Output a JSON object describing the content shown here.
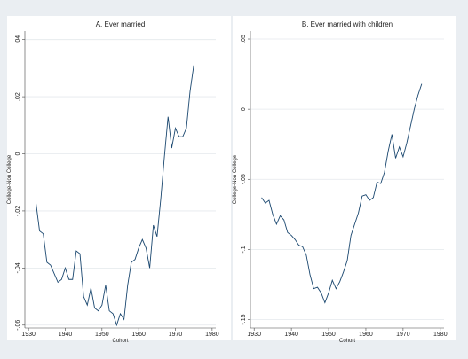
{
  "chart_data": [
    {
      "type": "line",
      "title": "A. Ever married",
      "x_label": "Cohort",
      "y_label": "College-Non College",
      "x": [
        1932,
        1933,
        1934,
        1935,
        1936,
        1937,
        1938,
        1939,
        1940,
        1941,
        1942,
        1943,
        1944,
        1945,
        1946,
        1947,
        1948,
        1949,
        1950,
        1951,
        1952,
        1953,
        1954,
        1955,
        1956,
        1957,
        1958,
        1959,
        1960,
        1961,
        1962,
        1963,
        1964,
        1965,
        1966,
        1967,
        1968,
        1969,
        1970,
        1971,
        1972,
        1973,
        1974,
        1975
      ],
      "series": [
        {
          "color": "#1a476f",
          "values": [
            -0.017,
            -0.027,
            -0.028,
            -0.038,
            -0.039,
            -0.042,
            -0.045,
            -0.044,
            -0.04,
            -0.044,
            -0.044,
            -0.034,
            -0.035,
            -0.05,
            -0.053,
            -0.047,
            -0.054,
            -0.055,
            -0.053,
            -0.046,
            -0.055,
            -0.056,
            -0.06,
            -0.056,
            -0.058,
            -0.046,
            -0.038,
            -0.037,
            -0.033,
            -0.03,
            -0.033,
            -0.04,
            -0.025,
            -0.029,
            -0.016,
            -0.001,
            0.013,
            0.002,
            0.009,
            0.006,
            0.006,
            0.009,
            0.022,
            0.031
          ]
        }
      ],
      "xlim": [
        1929,
        1981
      ],
      "xticks": [
        1930,
        1940,
        1950,
        1960,
        1970,
        1980
      ],
      "ylim": [
        -0.061,
        0.043
      ],
      "yticks": [
        {
          "value": -0.06,
          "label": "-.06"
        },
        {
          "value": -0.04,
          "label": "-.04"
        },
        {
          "value": -0.02,
          "label": "-.02"
        },
        0,
        {
          "value": 0.02,
          "label": ".02"
        },
        {
          "value": 0.04,
          "label": ".04"
        }
      ],
      "grid": true
    },
    {
      "type": "line",
      "title": "B. Ever married with children",
      "x_label": "Cohort",
      "y_label": "College-Non College",
      "x": [
        1932,
        1933,
        1934,
        1935,
        1936,
        1937,
        1938,
        1939,
        1940,
        1941,
        1942,
        1943,
        1944,
        1945,
        1946,
        1947,
        1948,
        1949,
        1950,
        1951,
        1952,
        1953,
        1954,
        1955,
        1956,
        1957,
        1958,
        1959,
        1960,
        1961,
        1962,
        1963,
        1964,
        1965,
        1966,
        1967,
        1968,
        1969,
        1970,
        1971,
        1972,
        1973,
        1974,
        1975
      ],
      "series": [
        {
          "color": "#1a476f",
          "values": [
            -0.063,
            -0.067,
            -0.065,
            -0.075,
            -0.082,
            -0.076,
            -0.079,
            -0.088,
            -0.09,
            -0.093,
            -0.097,
            -0.098,
            -0.104,
            -0.118,
            -0.128,
            -0.127,
            -0.131,
            -0.138,
            -0.131,
            -0.122,
            -0.128,
            -0.123,
            -0.116,
            -0.108,
            -0.09,
            -0.082,
            -0.074,
            -0.062,
            -0.061,
            -0.065,
            -0.063,
            -0.052,
            -0.053,
            -0.045,
            -0.03,
            -0.018,
            -0.035,
            -0.027,
            -0.034,
            -0.024,
            -0.012,
            0.0,
            0.01,
            0.018
          ]
        }
      ],
      "xlim": [
        1929,
        1981
      ],
      "xticks": [
        1930,
        1940,
        1950,
        1960,
        1970,
        1980
      ],
      "ylim": [
        -0.156,
        0.0557
      ],
      "yticks": [
        {
          "value": -0.15,
          "label": "-.15"
        },
        {
          "value": -0.1,
          "label": "-.1"
        },
        {
          "value": -0.05,
          "label": "-.05"
        },
        0,
        {
          "value": 0.05,
          "label": ".05"
        }
      ],
      "grid": true
    }
  ]
}
